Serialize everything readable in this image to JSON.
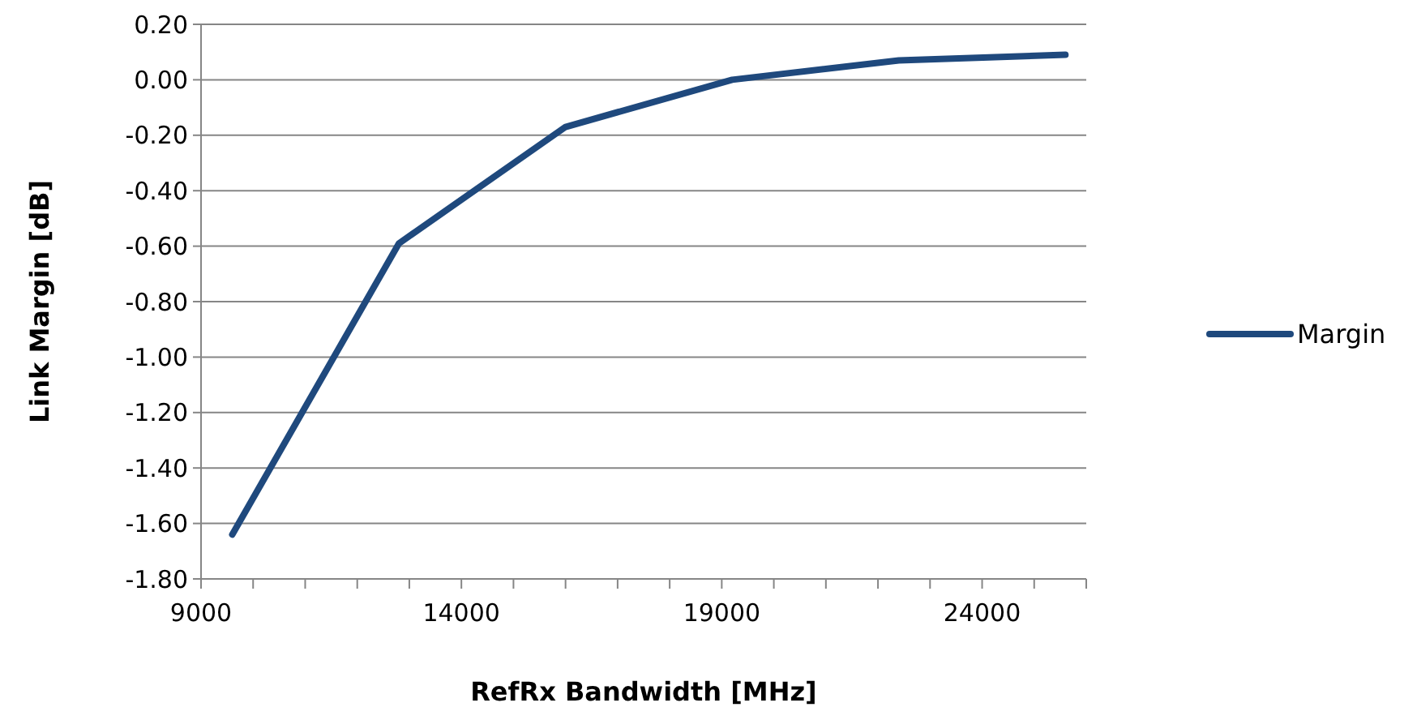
{
  "chart_data": {
    "type": "line",
    "xlabel": "RefRx Bandwidth  [MHz]",
    "ylabel": "Link Margin  [dB]",
    "x": [
      9600,
      12800,
      16000,
      19200,
      22400,
      25600
    ],
    "series": [
      {
        "name": "Margin",
        "color": "#1f497d",
        "values": [
          -1.64,
          -0.59,
          -0.17,
          0.0,
          0.07,
          0.09
        ]
      }
    ],
    "xlim": [
      9000,
      26000
    ],
    "xticks": [
      9000,
      {
        "value": 10000,
        "label": null
      },
      {
        "value": 11000,
        "label": null
      },
      {
        "value": 12000,
        "label": null
      },
      {
        "value": 13000,
        "label": null
      },
      14000,
      {
        "value": 15000,
        "label": null
      },
      {
        "value": 16000,
        "label": null
      },
      {
        "value": 17000,
        "label": null
      },
      {
        "value": 18000,
        "label": null
      },
      19000,
      {
        "value": 20000,
        "label": null
      },
      {
        "value": 21000,
        "label": null
      },
      {
        "value": 22000,
        "label": null
      },
      {
        "value": 23000,
        "label": null
      },
      24000,
      {
        "value": 25000,
        "label": null
      },
      {
        "value": 26000,
        "label": null
      }
    ],
    "ylim": [
      -1.8,
      0.2
    ],
    "yticks": [
      {
        "value": -1.8,
        "label": "-1.80"
      },
      {
        "value": -1.6,
        "label": "-1.60"
      },
      {
        "value": -1.4,
        "label": "-1.40"
      },
      {
        "value": -1.2,
        "label": "-1.20"
      },
      {
        "value": -1.0,
        "label": "-1.00"
      },
      {
        "value": -0.8,
        "label": "-0.80"
      },
      {
        "value": -0.6,
        "label": "-0.60"
      },
      {
        "value": -0.4,
        "label": "-0.40"
      },
      {
        "value": -0.2,
        "label": "-0.20"
      },
      {
        "value": 0,
        "label": "0.00"
      },
      {
        "value": 0.2,
        "label": "0.20"
      }
    ],
    "grid": "y",
    "legend": "right",
    "marker": "none",
    "line_style": "solid"
  }
}
